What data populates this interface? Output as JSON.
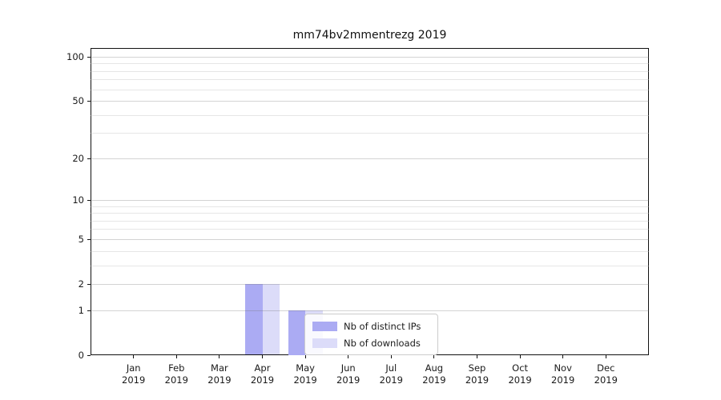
{
  "chart_data": {
    "type": "bar",
    "title": "mm74bv2mmentrezg 2019",
    "x_tick_year": "2019",
    "categories": [
      "Jan",
      "Feb",
      "Mar",
      "Apr",
      "May",
      "Jun",
      "Jul",
      "Aug",
      "Sep",
      "Oct",
      "Nov",
      "Dec"
    ],
    "series": [
      {
        "name": "Nb of distinct IPs",
        "color": "#ababf3",
        "values": [
          0,
          0,
          0,
          2,
          1,
          0,
          0,
          0,
          0,
          0,
          0,
          0
        ]
      },
      {
        "name": "Nb of downloads",
        "color": "#dcdcf9",
        "values": [
          0,
          0,
          0,
          2,
          1,
          0,
          0,
          0,
          0,
          0,
          0,
          0
        ]
      }
    ],
    "y_axis": {
      "scale": "log10(1+y)",
      "ticks": [
        0,
        1,
        2,
        5,
        10,
        20,
        50,
        100
      ],
      "minor_ticks": [
        3,
        4,
        6,
        7,
        8,
        9,
        30,
        40,
        60,
        70,
        80,
        90
      ],
      "max_value": 114.6
    },
    "xlabel": "",
    "ylabel": "",
    "grid": "horizontal",
    "legend_position": "inside-bottom-center"
  },
  "colors": {
    "axis": "#111111",
    "text": "#1a1a1a",
    "background": "#ffffff",
    "legend_border": "#cccccc"
  }
}
